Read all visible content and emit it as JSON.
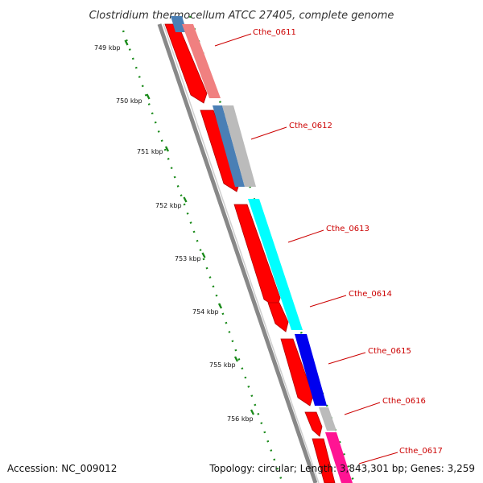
{
  "map": {
    "title": "Clostridium thermocellum ATCC 27405, complete genome",
    "accession": "Accession: NC_009012",
    "summary": "Topology: circular; Length: 3,843,301 bp; Genes: 3,259"
  },
  "ruler": {
    "ticks": [
      "749 kbp",
      "750 kbp",
      "751 kbp",
      "752 kbp",
      "753 kbp",
      "754 kbp",
      "755 kbp",
      "756 kbp"
    ]
  },
  "genes": [
    {
      "label": "Cthe_0611"
    },
    {
      "label": "Cthe_0612"
    },
    {
      "label": "Cthe_0613"
    },
    {
      "label": "Cthe_0614"
    },
    {
      "label": "Cthe_0615"
    },
    {
      "label": "Cthe_0616"
    },
    {
      "label": "Cthe_0617"
    }
  ],
  "colors": {
    "cds": "#ff0000",
    "backbone": "#888888",
    "ruler": "#1a8a1a",
    "label": "#cc0000",
    "feature_light_red": "#f08080",
    "feature_steel_blue": "#4a7fb5",
    "feature_grey": "#bbbbbb",
    "feature_cyan": "#00ffff",
    "feature_blue": "#0000ee",
    "feature_pink": "#ff1493"
  }
}
